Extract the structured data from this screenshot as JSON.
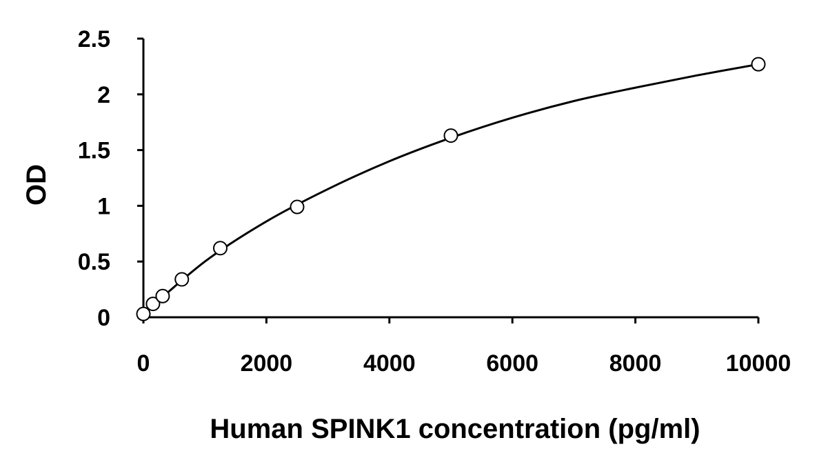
{
  "chart_data": {
    "type": "scatter",
    "title": "",
    "xlabel": "Human SPINK1 concentration (pg/ml)",
    "ylabel": "OD",
    "xlim": [
      0,
      10000
    ],
    "ylim": [
      0,
      2.5
    ],
    "x_ticks": [
      0,
      2000,
      4000,
      6000,
      8000,
      10000
    ],
    "x_tick_labels": [
      "0",
      "2000",
      "4000",
      "6000",
      "8000",
      "10000"
    ],
    "y_ticks": [
      0,
      0.5,
      1,
      1.5,
      2,
      2.5
    ],
    "y_tick_labels": [
      "0",
      "0.5",
      "1",
      "1.5",
      "2",
      "2.5"
    ],
    "grid": false,
    "legend": "none",
    "series": [
      {
        "marker": "open-circle",
        "points": [
          {
            "x": 0,
            "y": 0.03
          },
          {
            "x": 156,
            "y": 0.12
          },
          {
            "x": 313,
            "y": 0.19
          },
          {
            "x": 625,
            "y": 0.34
          },
          {
            "x": 1250,
            "y": 0.62
          },
          {
            "x": 2500,
            "y": 0.99
          },
          {
            "x": 5000,
            "y": 1.63
          },
          {
            "x": 10000,
            "y": 2.27
          }
        ]
      }
    ],
    "fit_curve": {
      "style": "solid-black",
      "points": [
        {
          "x": 0,
          "y": 0.03
        },
        {
          "x": 1000,
          "y": 0.5
        },
        {
          "x": 2000,
          "y": 0.86
        },
        {
          "x": 3000,
          "y": 1.15
        },
        {
          "x": 4000,
          "y": 1.4
        },
        {
          "x": 5000,
          "y": 1.61
        },
        {
          "x": 6000,
          "y": 1.79
        },
        {
          "x": 7000,
          "y": 1.94
        },
        {
          "x": 8000,
          "y": 2.06
        },
        {
          "x": 9000,
          "y": 2.17
        },
        {
          "x": 10000,
          "y": 2.27
        }
      ]
    },
    "colors": {
      "line": "#000000",
      "marker_fill": "#ffffff",
      "marker_stroke": "#000000"
    }
  }
}
